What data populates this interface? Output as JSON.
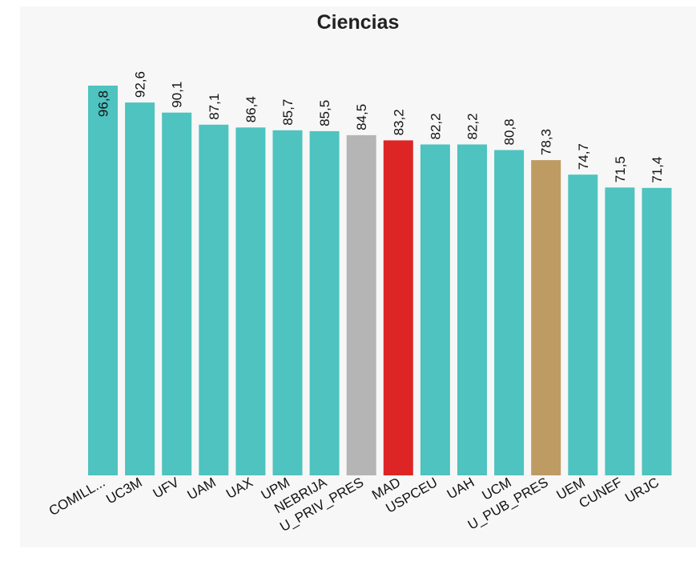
{
  "chart_data": {
    "type": "bar",
    "title": "Ciencias",
    "xlabel": "",
    "ylabel": "",
    "ylim": [
      0,
      96.8
    ],
    "grid": false,
    "legend": "none",
    "categories": [
      "COMILL...",
      "UC3M",
      "UFV",
      "UAM",
      "UAX",
      "UPM",
      "NEBRIJA",
      "U_PRIV_PRES",
      "MAD",
      "USPCEU",
      "UAH",
      "UCM",
      "U_PUB_PRES",
      "UEM",
      "CUNEF",
      "URJC"
    ],
    "values": [
      96.8,
      92.6,
      90.1,
      87.1,
      86.4,
      85.7,
      85.5,
      84.5,
      83.2,
      82.2,
      82.2,
      80.8,
      78.3,
      74.7,
      71.5,
      71.4
    ],
    "value_labels": [
      "96,8",
      "92,6",
      "90,1",
      "87,1",
      "86,4",
      "85,7",
      "85,5",
      "84,5",
      "83,2",
      "82,2",
      "82,2",
      "80,8",
      "78,3",
      "74,7",
      "71,5",
      "71,4"
    ],
    "colors": [
      "#4ec3bf",
      "#4ec3bf",
      "#4ec3bf",
      "#4ec3bf",
      "#4ec3bf",
      "#4ec3bf",
      "#4ec3bf",
      "#b5b5b5",
      "#dd2525",
      "#4ec3bf",
      "#4ec3bf",
      "#4ec3bf",
      "#bd9b63",
      "#4ec3bf",
      "#4ec3bf",
      "#4ec3bf"
    ],
    "label_inside": [
      true,
      false,
      false,
      false,
      false,
      false,
      false,
      false,
      false,
      false,
      false,
      false,
      false,
      false,
      false,
      false
    ]
  }
}
